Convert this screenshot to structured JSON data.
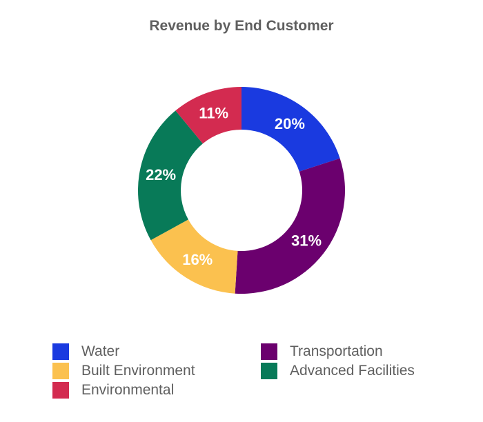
{
  "chart_data": {
    "type": "pie",
    "variant": "donut",
    "title": "Revenue by End Customer",
    "unit": "%",
    "legend_position": "bottom",
    "series": [
      {
        "name": "Water",
        "value": 20,
        "label": "20%",
        "color": "#1a3ae0"
      },
      {
        "name": "Transportation",
        "value": 31,
        "label": "31%",
        "color": "#6b006e"
      },
      {
        "name": "Built Environment",
        "value": 16,
        "label": "16%",
        "color": "#fbc14f"
      },
      {
        "name": "Advanced Facilities",
        "value": 22,
        "label": "22%",
        "color": "#087a58"
      },
      {
        "name": "Environmental",
        "value": 11,
        "label": "11%",
        "color": "#d32b50"
      }
    ]
  }
}
